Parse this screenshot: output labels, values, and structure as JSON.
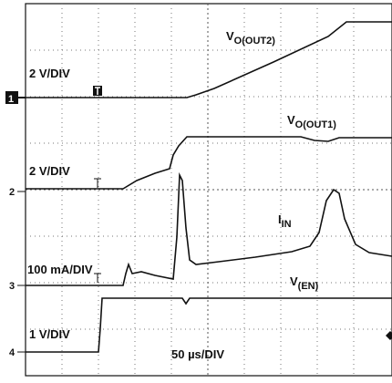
{
  "traces": [
    {
      "label": {
        "main": "V",
        "sub": "O(OUT2)"
      },
      "scale": "2 V/DIV",
      "channel": "1"
    },
    {
      "label": {
        "main": "V",
        "sub": "O(OUT1)"
      },
      "scale": "2 V/DIV",
      "channel": "2"
    },
    {
      "label": {
        "main": "I",
        "sub": "IN"
      },
      "scale": "100 mA/DIV",
      "channel": "3"
    },
    {
      "label": {
        "main": "V",
        "sub": "(EN)"
      },
      "scale": "1 V/DIV",
      "channel": "4"
    }
  ],
  "timebase": "50 µs/DIV"
}
